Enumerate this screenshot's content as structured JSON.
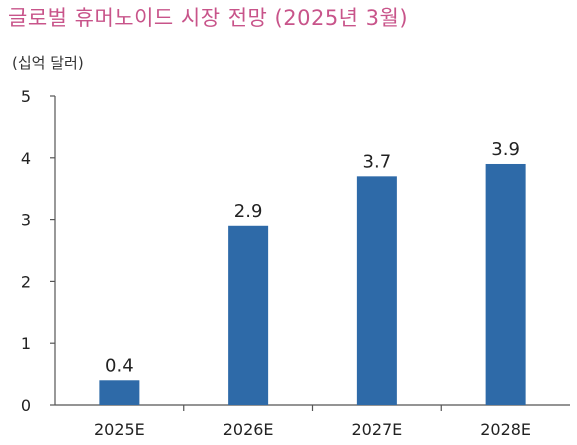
{
  "chart_data": {
    "type": "bar",
    "title": "글로벌 휴머노이드 시장 전망 (2025년 3월)",
    "unit_label": "(십억 달러)",
    "categories": [
      "2025E",
      "2026E",
      "2027E",
      "2028E"
    ],
    "values": [
      0.4,
      2.9,
      3.7,
      3.9
    ],
    "value_labels": [
      "0.4",
      "2.9",
      "3.7",
      "3.9"
    ],
    "yticks": [
      "0",
      "1",
      "2",
      "3",
      "4",
      "5"
    ],
    "ylim": [
      0,
      5
    ],
    "xlabel": "",
    "ylabel": "",
    "grid": false,
    "legend": "none",
    "bar_color": "#2e6aa8",
    "title_color": "#c8548a"
  }
}
